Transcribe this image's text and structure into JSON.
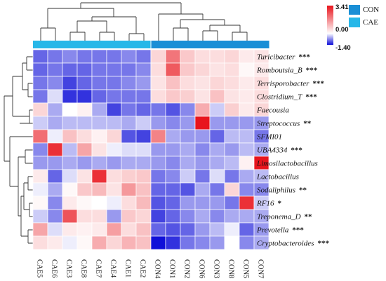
{
  "chart_data": {
    "type": "heatmap",
    "columns": [
      "CAE5",
      "CAE6",
      "CAE3",
      "CAE8",
      "CAE7",
      "CAE4",
      "CAE1",
      "CAE2",
      "CON4",
      "CON1",
      "CON2",
      "CON6",
      "CON3",
      "CON8",
      "CON5",
      "CON7"
    ],
    "column_groups": [
      "CAE",
      "CAE",
      "CAE",
      "CAE",
      "CAE",
      "CAE",
      "CAE",
      "CAE",
      "CON",
      "CON",
      "CON",
      "CON",
      "CON",
      "CON",
      "CON",
      "CON"
    ],
    "rows": [
      {
        "name": "Turicibacter",
        "significance": "***"
      },
      {
        "name": "Romboutsia_B",
        "significance": "***"
      },
      {
        "name": "Terrisporobacter",
        "significance": "***"
      },
      {
        "name": "Clostridium_T",
        "significance": "***"
      },
      {
        "name": "Faecousia",
        "significance": ""
      },
      {
        "name": "Streptococcus",
        "significance": "**"
      },
      {
        "name": "SFMI01",
        "significance": ""
      },
      {
        "name": "UBA4334",
        "significance": "***"
      },
      {
        "name": "Limosilactobacillus",
        "significance": ""
      },
      {
        "name": "Lactobacillus",
        "significance": ""
      },
      {
        "name": "Sodaliphilus",
        "significance": "**"
      },
      {
        "name": "RF16",
        "significance": "*"
      },
      {
        "name": "Treponema_D",
        "significance": "**"
      },
      {
        "name": "Prevotella",
        "significance": "***"
      },
      {
        "name": "Cryptobacteroides",
        "significance": "***"
      }
    ],
    "values": [
      [
        -0.9,
        -0.8,
        -0.7,
        -0.8,
        -0.8,
        -0.8,
        -0.7,
        -0.8,
        0.6,
        2.0,
        0.8,
        0.5,
        0.5,
        0.6,
        0.3,
        0.4
      ],
      [
        -0.9,
        -0.8,
        -0.9,
        -0.9,
        -0.8,
        -0.8,
        -0.8,
        -0.7,
        0.5,
        2.4,
        0.8,
        0.6,
        0.4,
        0.5,
        0.1,
        0.3
      ],
      [
        -0.8,
        -0.7,
        -1.1,
        -0.9,
        -0.8,
        -0.8,
        -0.7,
        -0.6,
        0.4,
        0.9,
        0.5,
        0.4,
        0.6,
        0.5,
        0.3,
        0.5
      ],
      [
        -0.8,
        -0.2,
        -1.2,
        -1.2,
        -0.9,
        -0.8,
        -0.8,
        -0.8,
        0.5,
        0.8,
        0.7,
        0.4,
        0.9,
        0.4,
        0.3,
        0.5
      ],
      [
        0.6,
        -0.5,
        0.0,
        0.2,
        -0.5,
        -1.1,
        -0.8,
        -0.9,
        -0.8,
        -1.0,
        -0.7,
        1.2,
        -0.3,
        0.7,
        0.3,
        0.6
      ],
      [
        -0.3,
        -0.5,
        -0.4,
        -0.4,
        -0.4,
        -0.4,
        -0.5,
        -0.3,
        -0.6,
        -0.7,
        -0.6,
        3.4,
        -0.6,
        -0.6,
        -0.6,
        -0.6
      ],
      [
        2.1,
        -0.1,
        0.9,
        0.5,
        0.2,
        0.6,
        -1.0,
        -1.1,
        1.8,
        -0.5,
        -0.6,
        -0.6,
        -0.9,
        -0.4,
        -0.4,
        -0.8
      ],
      [
        -0.7,
        3.0,
        -0.4,
        1.3,
        0.4,
        -0.1,
        -0.2,
        -0.2,
        -0.6,
        -0.6,
        -0.5,
        -0.7,
        -0.5,
        -0.6,
        -0.4,
        -0.5
      ],
      [
        -0.6,
        -0.6,
        -0.5,
        -0.6,
        -0.5,
        -0.6,
        -0.5,
        -0.5,
        -0.6,
        -0.7,
        -0.5,
        -0.6,
        -0.5,
        -0.4,
        0.2,
        3.4
      ],
      [
        0.3,
        -0.9,
        -0.2,
        0.4,
        3.0,
        0.5,
        0.7,
        0.8,
        -0.8,
        -0.7,
        -0.3,
        -0.8,
        -0.2,
        -0.8,
        -0.5,
        -0.4
      ],
      [
        -0.1,
        -0.5,
        0.1,
        0.8,
        1.0,
        0.4,
        1.5,
        0.9,
        -0.9,
        -0.9,
        -1.0,
        -0.5,
        -0.8,
        0.6,
        -0.7,
        -0.7
      ],
      [
        0.1,
        -0.7,
        0.3,
        0.1,
        0.0,
        -0.1,
        0.5,
        1.0,
        -1.0,
        -0.9,
        -0.6,
        -0.6,
        -0.6,
        -0.8,
        3.0,
        -0.3
      ],
      [
        -0.3,
        -0.7,
        2.5,
        0.5,
        0.5,
        -0.6,
        0.8,
        0.6,
        -1.1,
        -0.9,
        -0.7,
        -0.5,
        -0.7,
        -0.5,
        -0.5,
        -0.5
      ],
      [
        1.3,
        -0.2,
        0.3,
        0.2,
        0.3,
        1.4,
        0.5,
        0.9,
        -0.9,
        -1.0,
        -0.9,
        -0.6,
        -0.4,
        -0.1,
        -0.9,
        -0.6
      ],
      [
        0.5,
        0.3,
        -0.1,
        0.1,
        1.2,
        0.6,
        1.1,
        0.9,
        -1.4,
        -1.2,
        -0.8,
        -0.7,
        -0.6,
        0.0,
        -0.7,
        -0.5
      ]
    ],
    "colorbar": {
      "min": -1.4,
      "mid": 0.0,
      "max": 3.41,
      "tick_labels": [
        "3.41",
        "0.00",
        "-1.40"
      ],
      "colors": {
        "low": "#1010d8",
        "mid": "#ffffff",
        "high": "#e8141c"
      }
    },
    "legend": {
      "position": "top-right",
      "items": [
        {
          "label": "CON",
          "color": "#1a8fd6"
        },
        {
          "label": "CAE",
          "color": "#27b7e8"
        }
      ]
    }
  }
}
